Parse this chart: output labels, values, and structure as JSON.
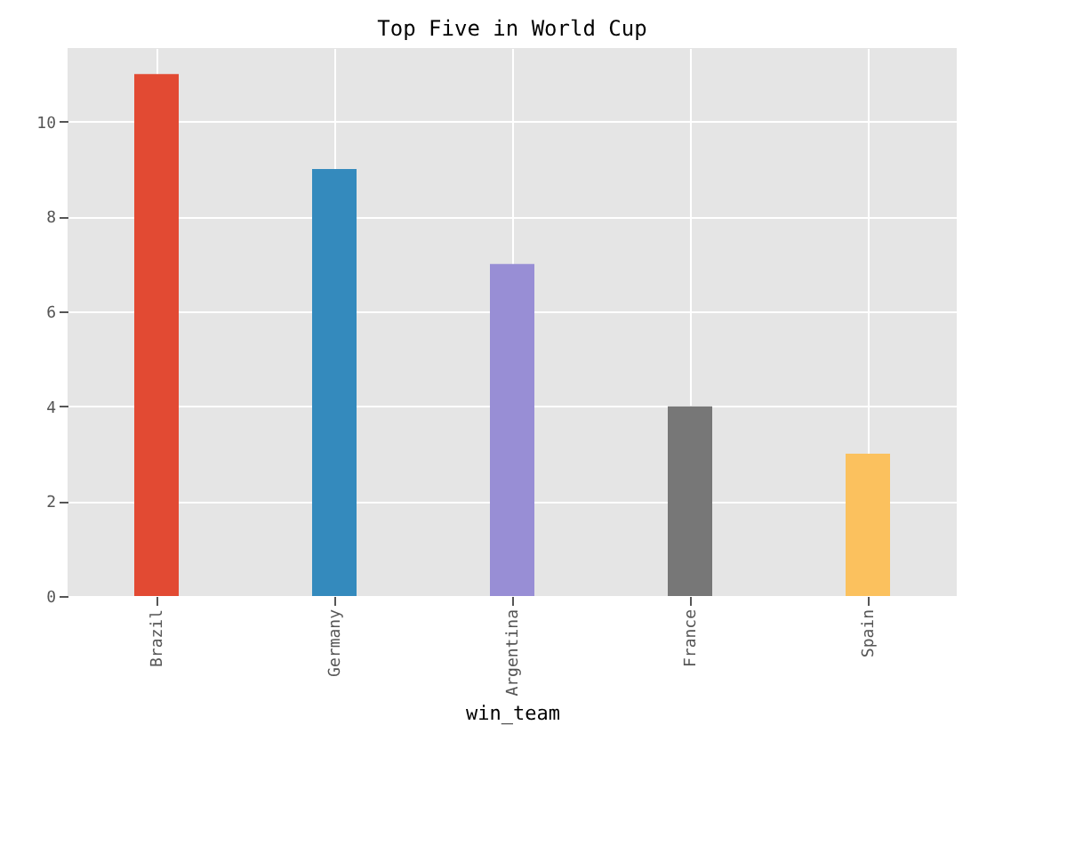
{
  "chart_data": {
    "type": "bar",
    "title": "Top Five in World Cup",
    "xlabel": "win_team",
    "categories": [
      "Brazil",
      "Germany",
      "Argentina",
      "France",
      "Spain"
    ],
    "values": [
      11,
      9,
      7,
      4,
      3
    ],
    "colors": [
      "#e24a33",
      "#348abd",
      "#988ed5",
      "#777777",
      "#fbc15e"
    ],
    "ylim": [
      0,
      11.55
    ],
    "yticks": [
      0,
      2,
      4,
      6,
      8,
      10
    ],
    "grid": true
  }
}
